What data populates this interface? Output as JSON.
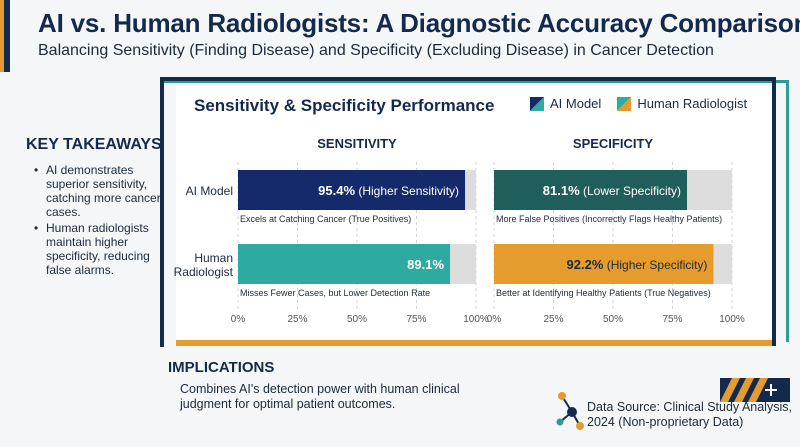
{
  "header": {
    "title": "AI vs. Human Radiologists: A Diagnostic Accuracy Comparison",
    "subtitle": "Balancing Sensitivity (Finding Disease) and Specificity (Excluding Disease) in Cancer Detection"
  },
  "key_takeaways": {
    "heading": "KEY TAKEAWAYS",
    "items": [
      "AI demonstrates superior sensitivity, catching more cancer cases.",
      "Human radiologists maintain higher specificity, reducing false alarms."
    ]
  },
  "implications": {
    "heading": "IMPLICATIONS",
    "text": "Combines AI's detection power with human clinical judgment for optimal patient outcomes."
  },
  "source": {
    "text": "Data Source: Clinical Study Analysis, 2024 (Non-proprietary Data)"
  },
  "colors": {
    "ai_sensitivity": "#142a6b",
    "human_sensitivity": "#2eaba0",
    "ai_specificity": "#1f5e5b",
    "human_specificity": "#e59c2c",
    "track": "#dddddd",
    "navy": "#142a4d",
    "orange": "#e49b2f",
    "teal": "#2e9c94"
  },
  "chart_data": {
    "type": "bar",
    "title": "Sensitivity & Specificity Performance",
    "categories": [
      "AI Model",
      "Human Radiologist"
    ],
    "legend": [
      {
        "name": "AI Model",
        "colors": [
          "#142a6b",
          "#2eaba0"
        ]
      },
      {
        "name": "Human Radiologist",
        "colors": [
          "#2eaba0",
          "#e59c2c"
        ]
      }
    ],
    "legend_position": "top-right",
    "xlim": [
      0,
      100
    ],
    "x_ticks": [
      "0%",
      "25%",
      "50%",
      "75%",
      "100%"
    ],
    "panels": [
      {
        "name": "SENSITIVITY",
        "values": [
          95.4,
          89.1
        ],
        "value_labels": [
          "95.4%",
          "89.1%"
        ],
        "qualifiers": [
          "(Higher Sensitivity)",
          ""
        ],
        "annotations": [
          "Excels at Catching Cancer (True Positives)",
          "Misses Fewer Cases, but Lower Detection Rate"
        ]
      },
      {
        "name": "SPECIFICITY",
        "values": [
          81.1,
          92.2
        ],
        "value_labels": [
          "81.1%",
          "92.2%"
        ],
        "qualifiers": [
          "(Lower Specificity)",
          "(Higher Specificity)"
        ],
        "annotations": [
          "More False Positives (Incorrectly Flags Healthy Patients)",
          "Better at Identifying Healthy Patients (True Negatives)"
        ]
      }
    ]
  }
}
